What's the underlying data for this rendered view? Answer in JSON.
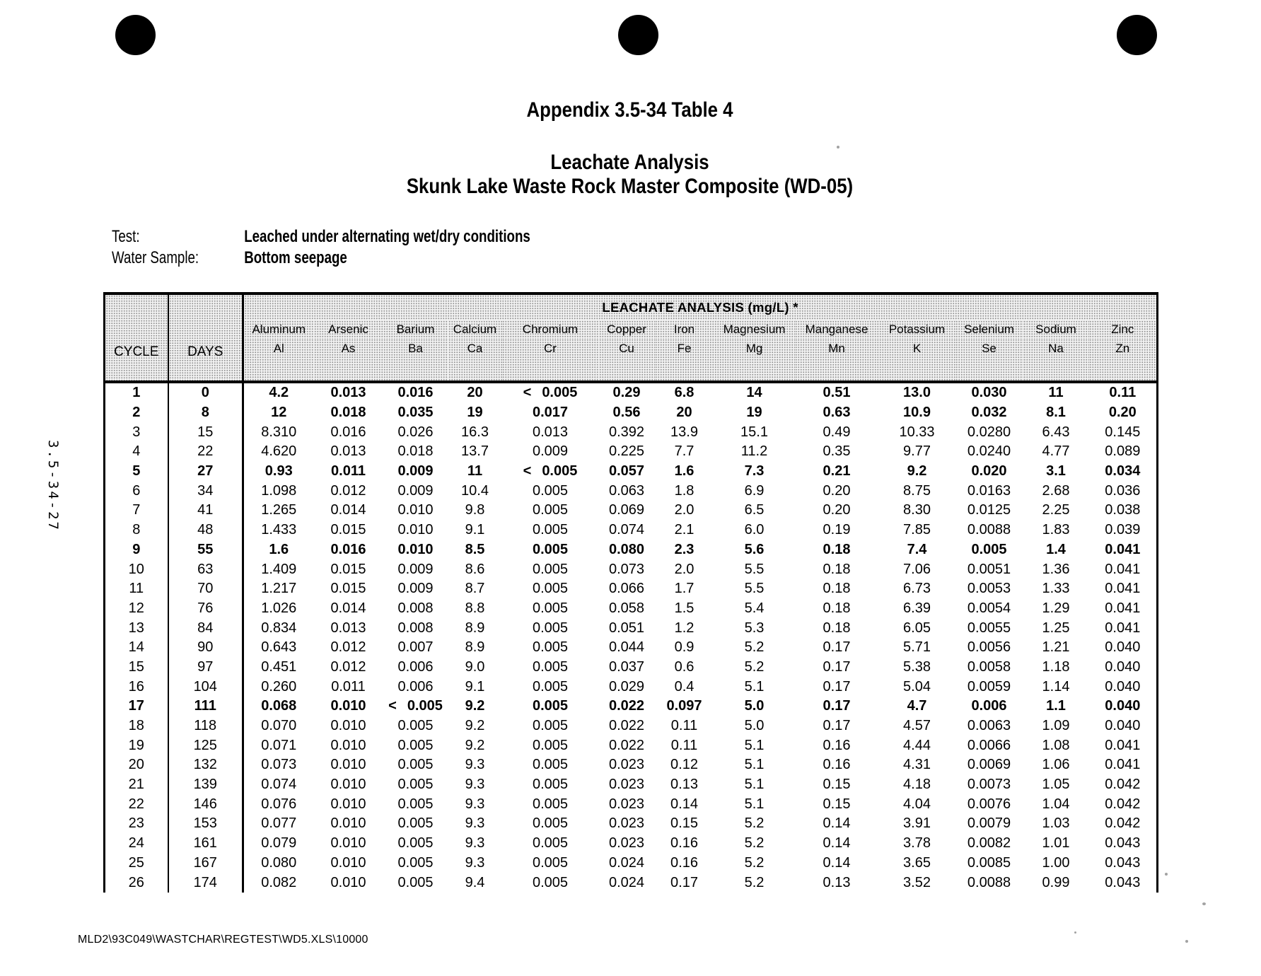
{
  "document": {
    "appendix_title": "Appendix 3.5-34 Table 4",
    "title": "Leachate Analysis",
    "subtitle": "Skunk Lake Waste Rock Master Composite (WD-05)",
    "test_label": "Test:",
    "test_value": "Leached under alternating wet/dry conditions",
    "water_sample_label": "Water Sample:",
    "water_sample_value": "Bottom seepage",
    "side_page_label": "3.5-34-27",
    "footer_path": "MLD2\\93C049\\WASTCHAR\\REGTEST\\WD5.XLS\\10000"
  },
  "table": {
    "group_header": "LEACHATE ANALYSIS (mg/L) *",
    "cycle_header": "CYCLE",
    "days_header": "DAYS",
    "analytes": [
      {
        "name": "Aluminum",
        "symbol": "Al"
      },
      {
        "name": "Arsenic",
        "symbol": "As"
      },
      {
        "name": "Barium",
        "symbol": "Ba"
      },
      {
        "name": "Calcium",
        "symbol": "Ca"
      },
      {
        "name": "Chromium",
        "symbol": "Cr"
      },
      {
        "name": "Copper",
        "symbol": "Cu"
      },
      {
        "name": "Iron",
        "symbol": "Fe"
      },
      {
        "name": "Magnesium",
        "symbol": "Mg"
      },
      {
        "name": "Manganese",
        "symbol": "Mn"
      },
      {
        "name": "Potassium",
        "symbol": "K"
      },
      {
        "name": "Selenium",
        "symbol": "Se"
      },
      {
        "name": "Sodium",
        "symbol": "Na"
      },
      {
        "name": "Zinc",
        "symbol": "Zn"
      }
    ],
    "rows": [
      {
        "cycle": "1",
        "days": "0",
        "bold": true,
        "values": [
          "4.2",
          "0.013",
          "0.016",
          "20",
          "< 0.005",
          "0.29",
          "6.8",
          "14",
          "0.51",
          "13.0",
          "0.030",
          "11",
          "0.11"
        ]
      },
      {
        "cycle": "2",
        "days": "8",
        "bold": true,
        "values": [
          "12",
          "0.018",
          "0.035",
          "19",
          "0.017",
          "0.56",
          "20",
          "19",
          "0.63",
          "10.9",
          "0.032",
          "8.1",
          "0.20"
        ]
      },
      {
        "cycle": "3",
        "days": "15",
        "bold": false,
        "values": [
          "8.310",
          "0.016",
          "0.026",
          "16.3",
          "0.013",
          "0.392",
          "13.9",
          "15.1",
          "0.49",
          "10.33",
          "0.0280",
          "6.43",
          "0.145"
        ]
      },
      {
        "cycle": "4",
        "days": "22",
        "bold": false,
        "values": [
          "4.620",
          "0.013",
          "0.018",
          "13.7",
          "0.009",
          "0.225",
          "7.7",
          "11.2",
          "0.35",
          "9.77",
          "0.0240",
          "4.77",
          "0.089"
        ]
      },
      {
        "cycle": "5",
        "days": "27",
        "bold": true,
        "values": [
          "0.93",
          "0.011",
          "0.009",
          "11",
          "< 0.005",
          "0.057",
          "1.6",
          "7.3",
          "0.21",
          "9.2",
          "0.020",
          "3.1",
          "0.034"
        ]
      },
      {
        "cycle": "6",
        "days": "34",
        "bold": false,
        "values": [
          "1.098",
          "0.012",
          "0.009",
          "10.4",
          "0.005",
          "0.063",
          "1.8",
          "6.9",
          "0.20",
          "8.75",
          "0.0163",
          "2.68",
          "0.036"
        ]
      },
      {
        "cycle": "7",
        "days": "41",
        "bold": false,
        "values": [
          "1.265",
          "0.014",
          "0.010",
          "9.8",
          "0.005",
          "0.069",
          "2.0",
          "6.5",
          "0.20",
          "8.30",
          "0.0125",
          "2.25",
          "0.038"
        ]
      },
      {
        "cycle": "8",
        "days": "48",
        "bold": false,
        "values": [
          "1.433",
          "0.015",
          "0.010",
          "9.1",
          "0.005",
          "0.074",
          "2.1",
          "6.0",
          "0.19",
          "7.85",
          "0.0088",
          "1.83",
          "0.039"
        ]
      },
      {
        "cycle": "9",
        "days": "55",
        "bold": true,
        "values": [
          "1.6",
          "0.016",
          "0.010",
          "8.5",
          "0.005",
          "0.080",
          "2.3",
          "5.6",
          "0.18",
          "7.4",
          "0.005",
          "1.4",
          "0.041"
        ]
      },
      {
        "cycle": "10",
        "days": "63",
        "bold": false,
        "values": [
          "1.409",
          "0.015",
          "0.009",
          "8.6",
          "0.005",
          "0.073",
          "2.0",
          "5.5",
          "0.18",
          "7.06",
          "0.0051",
          "1.36",
          "0.041"
        ]
      },
      {
        "cycle": "11",
        "days": "70",
        "bold": false,
        "values": [
          "1.217",
          "0.015",
          "0.009",
          "8.7",
          "0.005",
          "0.066",
          "1.7",
          "5.5",
          "0.18",
          "6.73",
          "0.0053",
          "1.33",
          "0.041"
        ]
      },
      {
        "cycle": "12",
        "days": "76",
        "bold": false,
        "values": [
          "1.026",
          "0.014",
          "0.008",
          "8.8",
          "0.005",
          "0.058",
          "1.5",
          "5.4",
          "0.18",
          "6.39",
          "0.0054",
          "1.29",
          "0.041"
        ]
      },
      {
        "cycle": "13",
        "days": "84",
        "bold": false,
        "values": [
          "0.834",
          "0.013",
          "0.008",
          "8.9",
          "0.005",
          "0.051",
          "1.2",
          "5.3",
          "0.18",
          "6.05",
          "0.0055",
          "1.25",
          "0.041"
        ]
      },
      {
        "cycle": "14",
        "days": "90",
        "bold": false,
        "values": [
          "0.643",
          "0.012",
          "0.007",
          "8.9",
          "0.005",
          "0.044",
          "0.9",
          "5.2",
          "0.17",
          "5.71",
          "0.0056",
          "1.21",
          "0.040"
        ]
      },
      {
        "cycle": "15",
        "days": "97",
        "bold": false,
        "values": [
          "0.451",
          "0.012",
          "0.006",
          "9.0",
          "0.005",
          "0.037",
          "0.6",
          "5.2",
          "0.17",
          "5.38",
          "0.0058",
          "1.18",
          "0.040"
        ]
      },
      {
        "cycle": "16",
        "days": "104",
        "bold": false,
        "values": [
          "0.260",
          "0.011",
          "0.006",
          "9.1",
          "0.005",
          "0.029",
          "0.4",
          "5.1",
          "0.17",
          "5.04",
          "0.0059",
          "1.14",
          "0.040"
        ]
      },
      {
        "cycle": "17",
        "days": "111",
        "bold": true,
        "values": [
          "0.068",
          "0.010",
          "< 0.005",
          "9.2",
          "0.005",
          "0.022",
          "0.097",
          "5.0",
          "0.17",
          "4.7",
          "0.006",
          "1.1",
          "0.040"
        ]
      },
      {
        "cycle": "18",
        "days": "118",
        "bold": false,
        "values": [
          "0.070",
          "0.010",
          "0.005",
          "9.2",
          "0.005",
          "0.022",
          "0.11",
          "5.0",
          "0.17",
          "4.57",
          "0.0063",
          "1.09",
          "0.040"
        ]
      },
      {
        "cycle": "19",
        "days": "125",
        "bold": false,
        "values": [
          "0.071",
          "0.010",
          "0.005",
          "9.2",
          "0.005",
          "0.022",
          "0.11",
          "5.1",
          "0.16",
          "4.44",
          "0.0066",
          "1.08",
          "0.041"
        ]
      },
      {
        "cycle": "20",
        "days": "132",
        "bold": false,
        "values": [
          "0.073",
          "0.010",
          "0.005",
          "9.3",
          "0.005",
          "0.023",
          "0.12",
          "5.1",
          "0.16",
          "4.31",
          "0.0069",
          "1.06",
          "0.041"
        ]
      },
      {
        "cycle": "21",
        "days": "139",
        "bold": false,
        "values": [
          "0.074",
          "0.010",
          "0.005",
          "9.3",
          "0.005",
          "0.023",
          "0.13",
          "5.1",
          "0.15",
          "4.18",
          "0.0073",
          "1.05",
          "0.042"
        ]
      },
      {
        "cycle": "22",
        "days": "146",
        "bold": false,
        "values": [
          "0.076",
          "0.010",
          "0.005",
          "9.3",
          "0.005",
          "0.023",
          "0.14",
          "5.1",
          "0.15",
          "4.04",
          "0.0076",
          "1.04",
          "0.042"
        ]
      },
      {
        "cycle": "23",
        "days": "153",
        "bold": false,
        "values": [
          "0.077",
          "0.010",
          "0.005",
          "9.3",
          "0.005",
          "0.023",
          "0.15",
          "5.2",
          "0.14",
          "3.91",
          "0.0079",
          "1.03",
          "0.042"
        ]
      },
      {
        "cycle": "24",
        "days": "161",
        "bold": false,
        "values": [
          "0.079",
          "0.010",
          "0.005",
          "9.3",
          "0.005",
          "0.023",
          "0.16",
          "5.2",
          "0.14",
          "3.78",
          "0.0082",
          "1.01",
          "0.043"
        ]
      },
      {
        "cycle": "25",
        "days": "167",
        "bold": false,
        "values": [
          "0.080",
          "0.010",
          "0.005",
          "9.3",
          "0.005",
          "0.024",
          "0.16",
          "5.2",
          "0.14",
          "3.65",
          "0.0085",
          "1.00",
          "0.043"
        ]
      },
      {
        "cycle": "26",
        "days": "174",
        "bold": false,
        "values": [
          "0.082",
          "0.010",
          "0.005",
          "9.4",
          "0.005",
          "0.024",
          "0.17",
          "5.2",
          "0.13",
          "3.52",
          "0.0088",
          "0.99",
          "0.043"
        ]
      }
    ]
  }
}
